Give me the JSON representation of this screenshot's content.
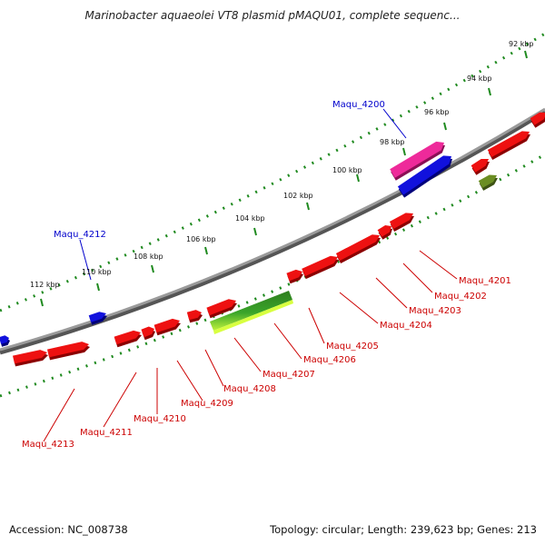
{
  "title": "Marinobacter aquaeolei VT8 plasmid pMAQU01, complete sequenc...",
  "footer": {
    "accession": "Accession: NC_008738",
    "summary": "Topology: circular; Length: 239,623 bp; Genes: 213"
  },
  "colors": {
    "backbone": "#8a8a8a",
    "ticks": "#1f8a1f",
    "label_tick": "#111111",
    "label_red": "#cc0000",
    "label_blue": "#0000cc",
    "red_gene": "#ee1111",
    "blue_gene": "#1111dd",
    "pink_gene": "#ee2a9a",
    "olive_gene": "#6b8e23"
  },
  "ruler": [
    "92 kbp",
    "94 kbp",
    "96 kbp",
    "98 kbp",
    "100 kbp",
    "102 kbp",
    "104 kbp",
    "106 kbp",
    "108 kbp",
    "110 kbp",
    "112 kbp"
  ],
  "outer_labels": [
    "Maqu_4200",
    "Maqu_4212"
  ],
  "inner_labels": [
    "Maqu_4201",
    "Maqu_4202",
    "Maqu_4203",
    "Maqu_4204",
    "Maqu_4205",
    "Maqu_4206",
    "Maqu_4207",
    "Maqu_4208",
    "Maqu_4209",
    "Maqu_4210",
    "Maqu_4211",
    "Maqu_4213"
  ]
}
